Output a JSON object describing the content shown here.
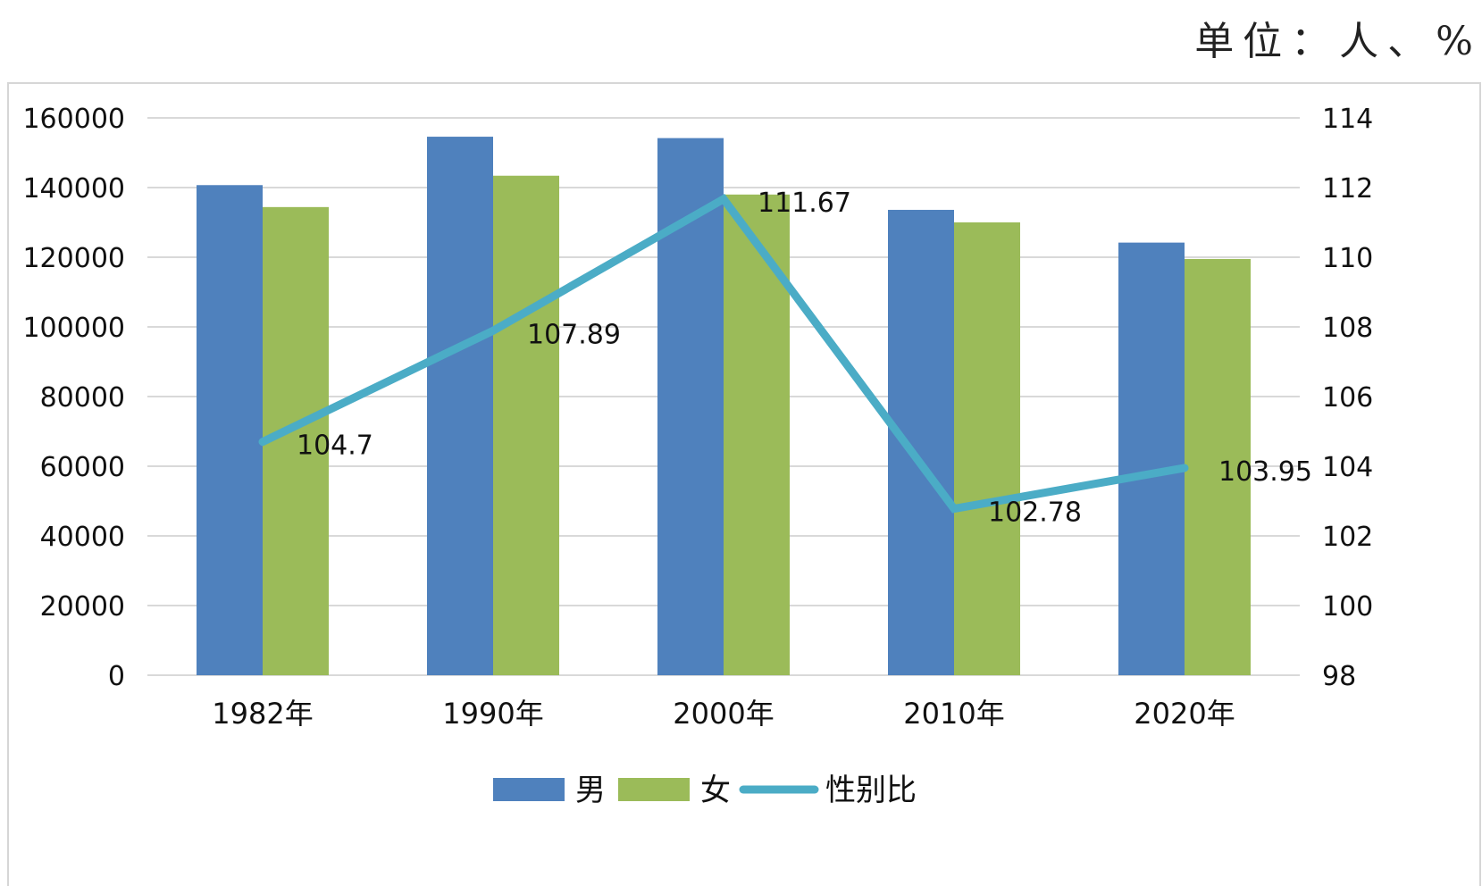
{
  "unit_label": "单位：人、%",
  "chart_data": {
    "type": "bar",
    "categories": [
      "1982年",
      "1990年",
      "2000年",
      "2010年",
      "2020年"
    ],
    "series": [
      {
        "name": "男",
        "type": "bar",
        "axis": "left",
        "color": "#4f81bd",
        "values": [
          140700,
          154600,
          154200,
          133600,
          124200
        ]
      },
      {
        "name": "女",
        "type": "bar",
        "axis": "left",
        "color": "#9bbb59",
        "values": [
          134400,
          143400,
          138000,
          130000,
          119500
        ]
      },
      {
        "name": "性别比",
        "type": "line",
        "axis": "right",
        "color": "#4bacc6",
        "values": [
          104.7,
          107.89,
          111.67,
          102.78,
          103.95
        ],
        "labels": [
          "104.7",
          "107.89",
          "111.67",
          "102.78",
          "103.95"
        ]
      }
    ],
    "y_left": {
      "min": 0,
      "max": 160000,
      "ticks": [
        "0",
        "20000",
        "40000",
        "60000",
        "80000",
        "100000",
        "120000",
        "140000",
        "160000"
      ]
    },
    "y_right": {
      "min": 98,
      "max": 114,
      "ticks": [
        "98",
        "100",
        "102",
        "104",
        "106",
        "108",
        "110",
        "112",
        "114"
      ]
    },
    "grid": true,
    "legend_position": "bottom",
    "gridline_color": "#d9d9d9"
  }
}
